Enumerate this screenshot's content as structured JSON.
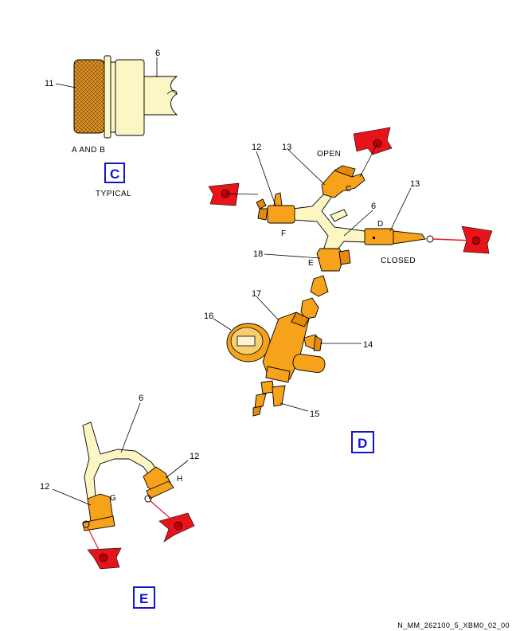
{
  "callouts": {
    "c_11": "11",
    "c_6_top": "6",
    "c_12_d": "12",
    "c_13_d_left": "13",
    "c_13_d_right": "13",
    "c_6_d": "6",
    "c_18": "18",
    "c_17": "17",
    "c_16": "16",
    "c_14": "14",
    "c_15": "15",
    "c_6_e": "6",
    "c_12_e_right": "12",
    "c_12_e_left": "12"
  },
  "letters": {
    "C": "C",
    "D": "D",
    "E": "E",
    "F": "F",
    "G": "G",
    "H": "H"
  },
  "captions": {
    "a_and_b": "A AND B",
    "typical": "TYPICAL",
    "open": "OPEN",
    "closed": "CLOSED"
  },
  "views": {
    "C": "C",
    "D": "D",
    "E": "E"
  },
  "reference": "N_MM_262100_5_XBM0_02_00",
  "colors": {
    "hose": "#fbf6c4",
    "fitting": "#f7a21b",
    "warning_tag": "#e8141c",
    "view_label": "#1414c8"
  }
}
